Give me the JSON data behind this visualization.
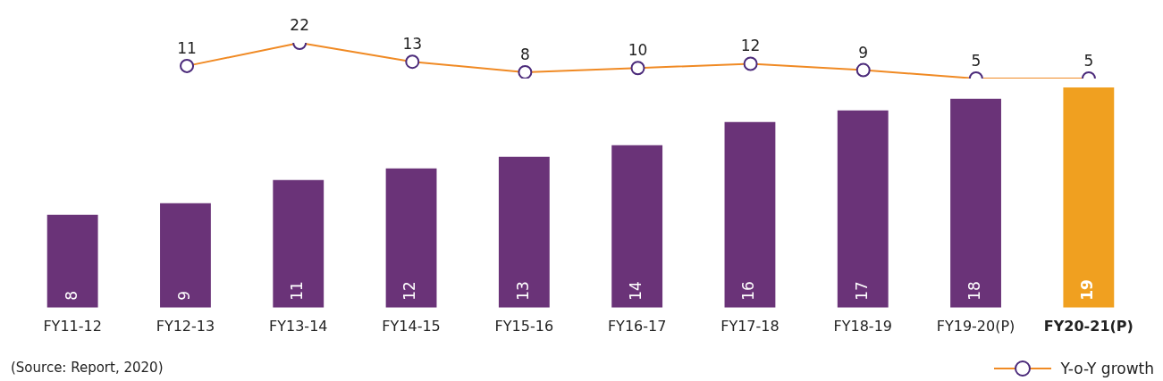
{
  "chart_data": [
    {
      "type": "line",
      "categories": [
        null,
        null,
        null,
        null,
        null,
        null,
        null,
        null,
        null
      ],
      "series": [
        {
          "name": "Y-o-Y growth",
          "color": "#f08a24",
          "values": [
            11,
            22,
            13,
            8,
            10,
            12,
            9,
            5,
            5
          ]
        }
      ],
      "marker": "circle",
      "line_style": "solid",
      "tick_labels": false,
      "data_labels": true,
      "grid": false,
      "legend": "bottom right"
    },
    {
      "type": "bar",
      "categories": [
        "FY11-12",
        "FY12-13",
        "FY13-14",
        "FY14-15",
        "FY15-16",
        "FY16-17",
        "FY17-18",
        "FY18-19",
        "FY19-20(P)",
        "FY20-21(P)"
      ],
      "series": [
        {
          "colors": [
            "#6a3378",
            "#6a3378",
            "#6a3378",
            "#6a3378",
            "#6a3378",
            "#6a3378",
            "#6a3378",
            "#6a3378",
            "#6a3378",
            "#f0a020"
          ],
          "values": [
            8,
            9,
            11,
            12,
            13,
            14,
            16,
            17,
            18,
            19
          ]
        }
      ],
      "tick_labels": "x",
      "data_labels": true,
      "grid": false,
      "annotations": [
        "(Source: Report, 2020)"
      ]
    }
  ]
}
